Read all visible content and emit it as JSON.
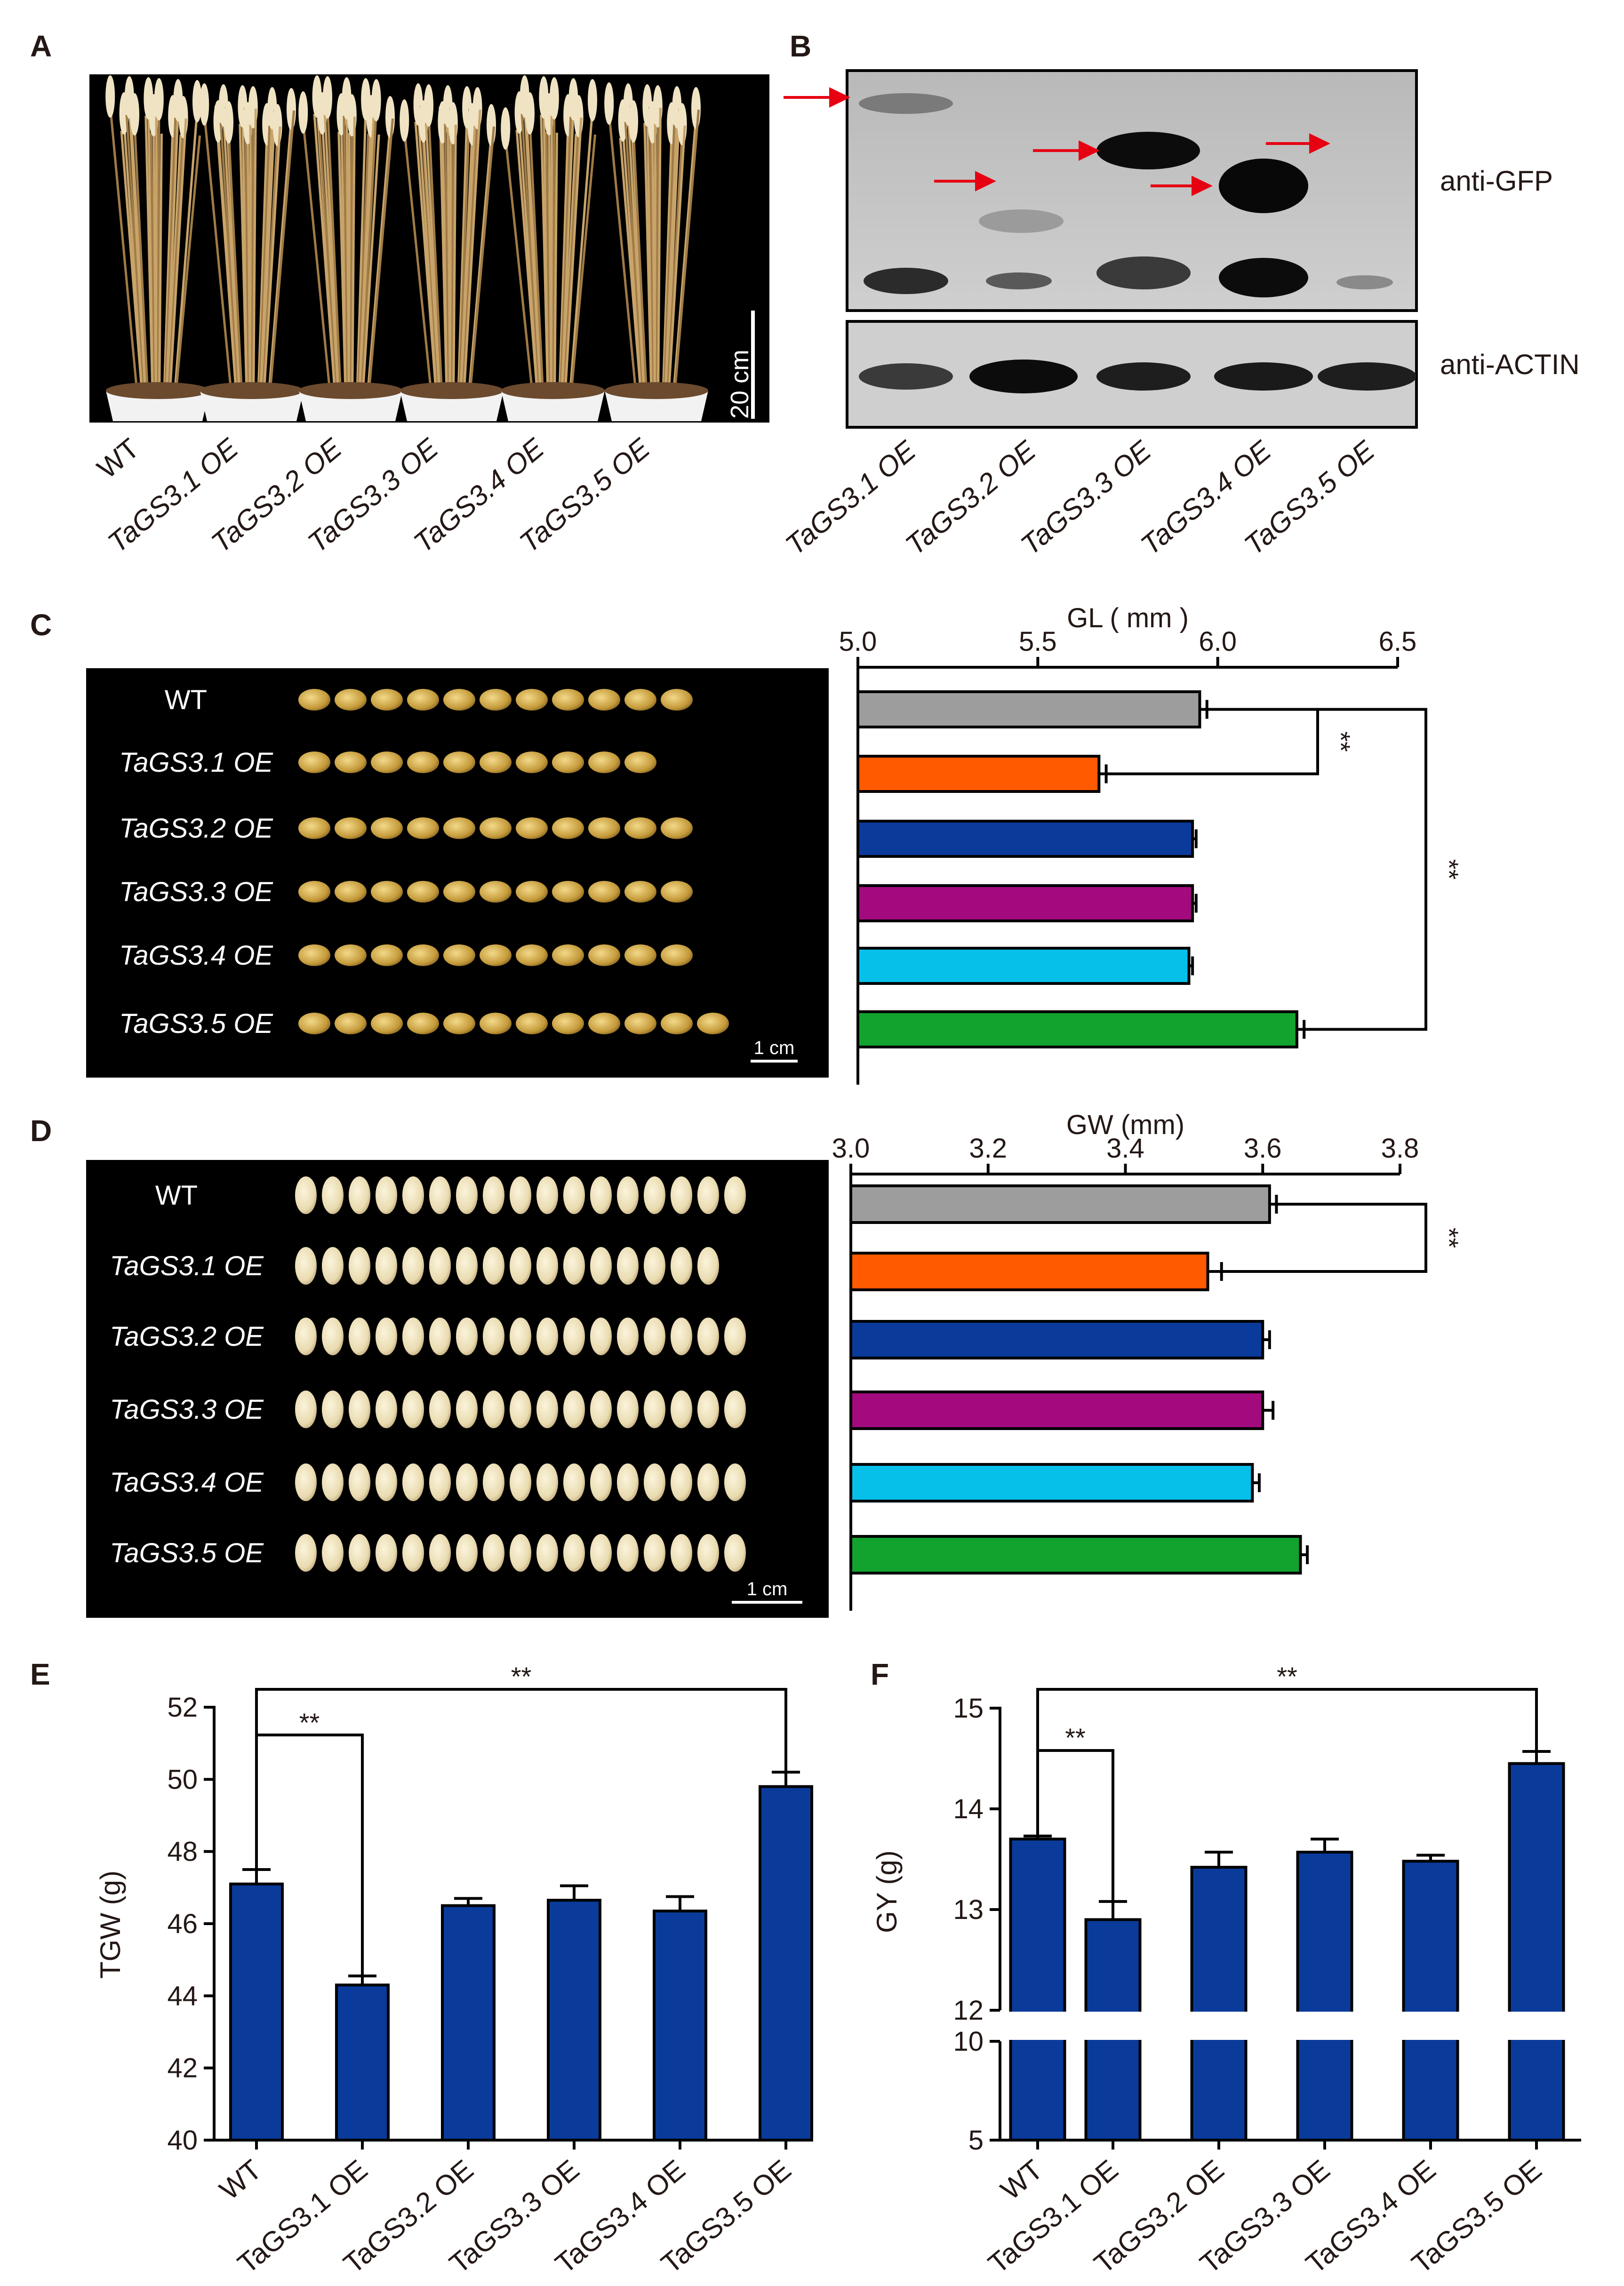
{
  "panels": {
    "A": {
      "label": "A",
      "scale_bar": "20 cm",
      "samples": [
        "WT",
        "TaGS3.1 OE",
        "TaGS3.2 OE",
        "TaGS3.3 OE",
        "TaGS3.4 OE",
        "TaGS3.5 OE"
      ]
    },
    "B": {
      "label": "B",
      "blot_labels": [
        "anti-GFP",
        "anti-ACTIN"
      ],
      "samples": [
        "TaGS3.1 OE",
        "TaGS3.2 OE",
        "TaGS3.3 OE",
        "TaGS3.4 OE",
        "TaGS3.5 OE"
      ]
    },
    "C": {
      "label": "C",
      "row_labels": [
        "WT",
        "TaGS3.1 OE",
        "TaGS3.2 OE",
        "TaGS3.3 OE",
        "TaGS3.4 OE",
        "TaGS3.5 OE"
      ],
      "scale_bar": "1 cm"
    },
    "D": {
      "label": "D",
      "row_labels": [
        "WT",
        "TaGS3.1 OE",
        "TaGS3.2 OE",
        "TaGS3.3 OE",
        "TaGS3.4 OE",
        "TaGS3.5 OE"
      ],
      "scale_bar": "1 cm"
    },
    "E": {
      "label": "E"
    },
    "F": {
      "label": "F"
    }
  },
  "chart_data": [
    {
      "id": "C",
      "type": "bar",
      "orientation": "horizontal",
      "title": "GL ( mm )",
      "categories": [
        "WT",
        "TaGS3.1 OE",
        "TaGS3.2 OE",
        "TaGS3.3 OE",
        "TaGS3.4 OE",
        "TaGS3.5 OE"
      ],
      "values": [
        5.95,
        5.67,
        5.93,
        5.93,
        5.92,
        6.22
      ],
      "errors": [
        0.02,
        0.02,
        0.01,
        0.01,
        0.01,
        0.02
      ],
      "xlim": [
        5.0,
        6.5
      ],
      "ticks": [
        "5.0",
        "5.5",
        "6.0",
        "6.5"
      ],
      "colors": [
        "#9d9d9d",
        "#ff5a00",
        "#0a3b9b",
        "#a20a7d",
        "#06c0ea",
        "#12a22e"
      ],
      "significance": [
        {
          "pair": [
            "WT",
            "TaGS3.1 OE"
          ],
          "label": "**"
        },
        {
          "pair": [
            "WT",
            "TaGS3.5 OE"
          ],
          "label": "**"
        }
      ]
    },
    {
      "id": "D",
      "type": "bar",
      "orientation": "horizontal",
      "title": "GW (mm)",
      "categories": [
        "WT",
        "TaGS3.1 OE",
        "TaGS3.2 OE",
        "TaGS3.3 OE",
        "TaGS3.4 OE",
        "TaGS3.5 OE"
      ],
      "values": [
        3.61,
        3.52,
        3.6,
        3.6,
        3.585,
        3.655
      ],
      "errors": [
        0.01,
        0.02,
        0.01,
        0.015,
        0.01,
        0.01
      ],
      "xlim": [
        3.0,
        3.8
      ],
      "ticks": [
        "3.0",
        "3.2",
        "3.4",
        "3.6",
        "3.8"
      ],
      "colors": [
        "#9d9d9d",
        "#ff5a00",
        "#0a3b9b",
        "#a20a7d",
        "#06c0ea",
        "#12a22e"
      ],
      "significance": [
        {
          "pair": [
            "WT",
            "TaGS3.1 OE"
          ],
          "label": "**"
        }
      ]
    },
    {
      "id": "E",
      "type": "bar",
      "ylabel": "TGW (g)",
      "categories": [
        "WT",
        "TaGS3.1 OE",
        "TaGS3.2 OE",
        "TaGS3.3 OE",
        "TaGS3.4 OE",
        "TaGS3.5 OE"
      ],
      "values": [
        47.1,
        44.3,
        46.5,
        46.65,
        46.35,
        49.8
      ],
      "errors": [
        0.4,
        0.25,
        0.2,
        0.4,
        0.4,
        0.4
      ],
      "ylim": [
        40,
        52
      ],
      "ticks": [
        "40",
        "42",
        "44",
        "46",
        "48",
        "50",
        "52"
      ],
      "color": "#0a3b9b",
      "significance": [
        {
          "pair": [
            "WT",
            "TaGS3.1 OE"
          ],
          "label": "**"
        },
        {
          "pair": [
            "WT",
            "TaGS3.5 OE"
          ],
          "label": "**"
        }
      ]
    },
    {
      "id": "F",
      "type": "bar",
      "ylabel": "GY (g)",
      "axis_break": [
        10,
        12
      ],
      "categories": [
        "WT",
        "TaGS3.1 OE",
        "TaGS3.2 OE",
        "TaGS3.3 OE",
        "TaGS3.4 OE",
        "TaGS3.5 OE"
      ],
      "values": [
        13.7,
        12.9,
        13.42,
        13.57,
        13.48,
        14.45
      ],
      "errors": [
        0.03,
        0.18,
        0.15,
        0.13,
        0.06,
        0.12
      ],
      "ylim": [
        5,
        15
      ],
      "ticks": [
        "5",
        "10",
        "12",
        "13",
        "14",
        "15"
      ],
      "color": "#0a3b9b",
      "significance": [
        {
          "pair": [
            "WT",
            "TaGS3.1 OE"
          ],
          "label": "**"
        },
        {
          "pair": [
            "WT",
            "TaGS3.5 OE"
          ],
          "label": "**"
        }
      ]
    }
  ]
}
